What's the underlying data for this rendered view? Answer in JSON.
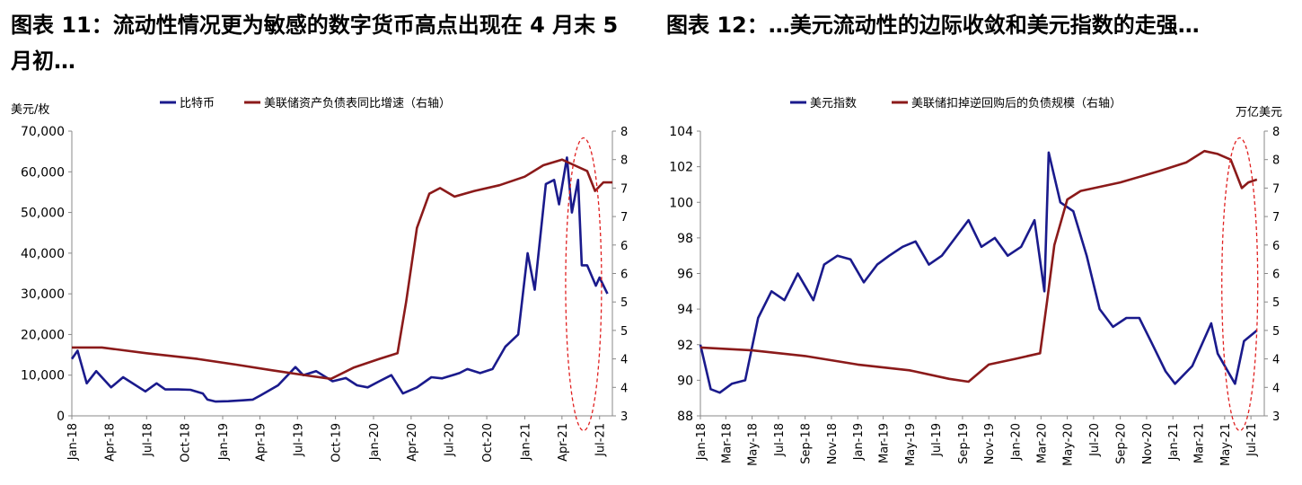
{
  "titles": {
    "left": "图表 11：流动性情况更为敏感的数字货币高点出现在 4 月末 5 月初…",
    "right": "图表 12：…美元流动性的边际收敛和美元指数的走强…"
  },
  "chart_data": [
    {
      "type": "line",
      "unit_left": "美元/枚",
      "x_ticks": [
        "Jan-18",
        "Apr-18",
        "Jul-18",
        "Oct-18",
        "Jan-19",
        "Apr-19",
        "Jul-19",
        "Oct-19",
        "Jan-20",
        "Apr-20",
        "Jul-20",
        "Oct-20",
        "Jan-21",
        "Apr-21",
        "Jul-21"
      ],
      "ylim_left": [
        0,
        70000
      ],
      "yticks_left": [
        "0",
        "10,000",
        "20,000",
        "30,000",
        "40,000",
        "50,000",
        "60,000",
        "70,000"
      ],
      "ylim_right": [
        3,
        8
      ],
      "yticks_right": [
        "3",
        "4",
        "4",
        "5",
        "5",
        "6",
        "6",
        "7",
        "7",
        "8",
        "8"
      ],
      "series": [
        {
          "name": "比特币",
          "axis": "left",
          "color": "#1a1a8c",
          "x": [
            "2018-01-01",
            "2018-01-15",
            "2018-02-06",
            "2018-03-01",
            "2018-04-06",
            "2018-05-05",
            "2018-06-28",
            "2018-07-25",
            "2018-08-15",
            "2018-09-15",
            "2018-10-15",
            "2018-11-14",
            "2018-11-25",
            "2018-12-15",
            "2019-01-15",
            "2019-02-15",
            "2019-03-15",
            "2019-04-02",
            "2019-05-15",
            "2019-06-26",
            "2019-07-15",
            "2019-08-15",
            "2019-09-24",
            "2019-10-26",
            "2019-11-22",
            "2019-12-18",
            "2020-01-15",
            "2020-02-13",
            "2020-03-12",
            "2020-04-15",
            "2020-05-20",
            "2020-06-15",
            "2020-07-27",
            "2020-08-15",
            "2020-09-15",
            "2020-10-15",
            "2020-11-15",
            "2020-12-16",
            "2021-01-08",
            "2021-01-25",
            "2021-02-21",
            "2021-03-13",
            "2021-03-25",
            "2021-04-13",
            "2021-04-25",
            "2021-05-10",
            "2021-05-19",
            "2021-06-01",
            "2021-06-22",
            "2021-07-01",
            "2021-07-20"
          ],
          "values": [
            14000,
            16000,
            8000,
            11000,
            7000,
            9500,
            6000,
            8000,
            6500,
            6500,
            6400,
            5500,
            4000,
            3500,
            3600,
            3800,
            4000,
            5000,
            7500,
            12000,
            10000,
            11000,
            8500,
            9300,
            7500,
            7000,
            8500,
            10000,
            5500,
            7000,
            9500,
            9200,
            10500,
            11500,
            10500,
            11500,
            17000,
            20000,
            40000,
            31000,
            57000,
            58000,
            52000,
            63500,
            50000,
            58000,
            37000,
            37000,
            32000,
            34000,
            30000
          ]
        },
        {
          "name": "美联储资产负债表同比增速（右轴）",
          "axis": "right",
          "color": "#8b1a1a",
          "x": [
            "2018-01-01",
            "2018-03-15",
            "2018-07-01",
            "2018-11-01",
            "2019-02-01",
            "2019-05-01",
            "2019-08-01",
            "2019-09-20",
            "2019-11-15",
            "2020-01-15",
            "2020-02-28",
            "2020-03-20",
            "2020-04-15",
            "2020-05-15",
            "2020-06-10",
            "2020-07-15",
            "2020-09-01",
            "2020-11-01",
            "2021-01-01",
            "2021-02-15",
            "2021-04-01",
            "2021-05-01",
            "2021-06-01",
            "2021-06-20",
            "2021-07-10",
            "2021-08-01"
          ],
          "values": [
            4.2,
            4.2,
            4.1,
            4.0,
            3.9,
            3.8,
            3.7,
            3.65,
            3.85,
            4.0,
            4.1,
            5.0,
            6.3,
            6.9,
            7.0,
            6.85,
            6.95,
            7.05,
            7.2,
            7.4,
            7.5,
            7.4,
            7.3,
            6.95,
            7.1,
            7.1
          ]
        }
      ]
    },
    {
      "type": "line",
      "unit_right": "万亿美元",
      "x_ticks": [
        "Jan-18",
        "Mar-18",
        "May-18",
        "Jul-18",
        "Sep-18",
        "Nov-18",
        "Jan-19",
        "Mar-19",
        "May-19",
        "Jul-19",
        "Sep-19",
        "Nov-19",
        "Jan-20",
        "Mar-20",
        "May-20",
        "Jul-20",
        "Sep-20",
        "Nov-20",
        "Jan-21",
        "Mar-21",
        "May-21",
        "Jul-21"
      ],
      "ylim_left": [
        88,
        104
      ],
      "yticks_left": [
        "88",
        "90",
        "92",
        "94",
        "96",
        "98",
        "100",
        "102",
        "104"
      ],
      "ylim_right": [
        3,
        8
      ],
      "yticks_right": [
        "3",
        "4",
        "4",
        "5",
        "5",
        "6",
        "6",
        "7",
        "7",
        "8",
        "8"
      ],
      "series": [
        {
          "name": "美元指数",
          "axis": "left",
          "color": "#1a1a8c",
          "x": [
            "2018-01-01",
            "2018-01-25",
            "2018-02-15",
            "2018-03-15",
            "2018-04-15",
            "2018-05-15",
            "2018-06-15",
            "2018-07-15",
            "2018-08-15",
            "2018-09-20",
            "2018-10-15",
            "2018-11-15",
            "2018-12-15",
            "2019-01-15",
            "2019-02-15",
            "2019-03-15",
            "2019-04-15",
            "2019-05-15",
            "2019-06-15",
            "2019-07-15",
            "2019-08-15",
            "2019-09-15",
            "2019-10-15",
            "2019-11-15",
            "2019-12-15",
            "2020-01-15",
            "2020-02-15",
            "2020-03-09",
            "2020-03-19",
            "2020-04-15",
            "2020-05-15",
            "2020-06-15",
            "2020-07-15",
            "2020-08-15",
            "2020-09-15",
            "2020-10-15",
            "2020-11-15",
            "2020-12-15",
            "2021-01-06",
            "2021-02-15",
            "2021-03-31",
            "2021-04-15",
            "2021-05-25",
            "2021-06-15",
            "2021-07-15"
          ],
          "values": [
            92,
            89.5,
            89.3,
            89.8,
            90,
            93.5,
            95,
            94.5,
            96,
            94.5,
            96.5,
            97,
            96.8,
            95.5,
            96.5,
            97,
            97.5,
            97.8,
            96.5,
            97,
            98,
            99,
            97.5,
            98,
            97,
            97.5,
            99,
            95,
            102.8,
            100,
            99.5,
            97,
            94,
            93,
            93.5,
            93.5,
            92,
            90.5,
            89.8,
            90.8,
            93.2,
            91.5,
            89.8,
            92.2,
            92.8
          ]
        },
        {
          "name": "美联储扣掉逆回购后的负债规模（右轴）",
          "axis": "right",
          "color": "#8b1a1a",
          "x": [
            "2018-01-01",
            "2018-05-01",
            "2018-09-01",
            "2019-01-01",
            "2019-05-01",
            "2019-08-01",
            "2019-09-15",
            "2019-11-01",
            "2020-01-01",
            "2020-02-28",
            "2020-03-15",
            "2020-04-01",
            "2020-05-01",
            "2020-06-01",
            "2020-09-01",
            "2020-12-01",
            "2021-02-01",
            "2021-03-15",
            "2021-04-15",
            "2021-05-15",
            "2021-06-10",
            "2021-06-25",
            "2021-07-15"
          ],
          "values": [
            4.2,
            4.15,
            4.05,
            3.9,
            3.8,
            3.65,
            3.6,
            3.9,
            4.0,
            4.1,
            5.0,
            6.0,
            6.8,
            6.95,
            7.1,
            7.3,
            7.45,
            7.65,
            7.6,
            7.5,
            7.0,
            7.1,
            7.15
          ]
        }
      ]
    }
  ]
}
